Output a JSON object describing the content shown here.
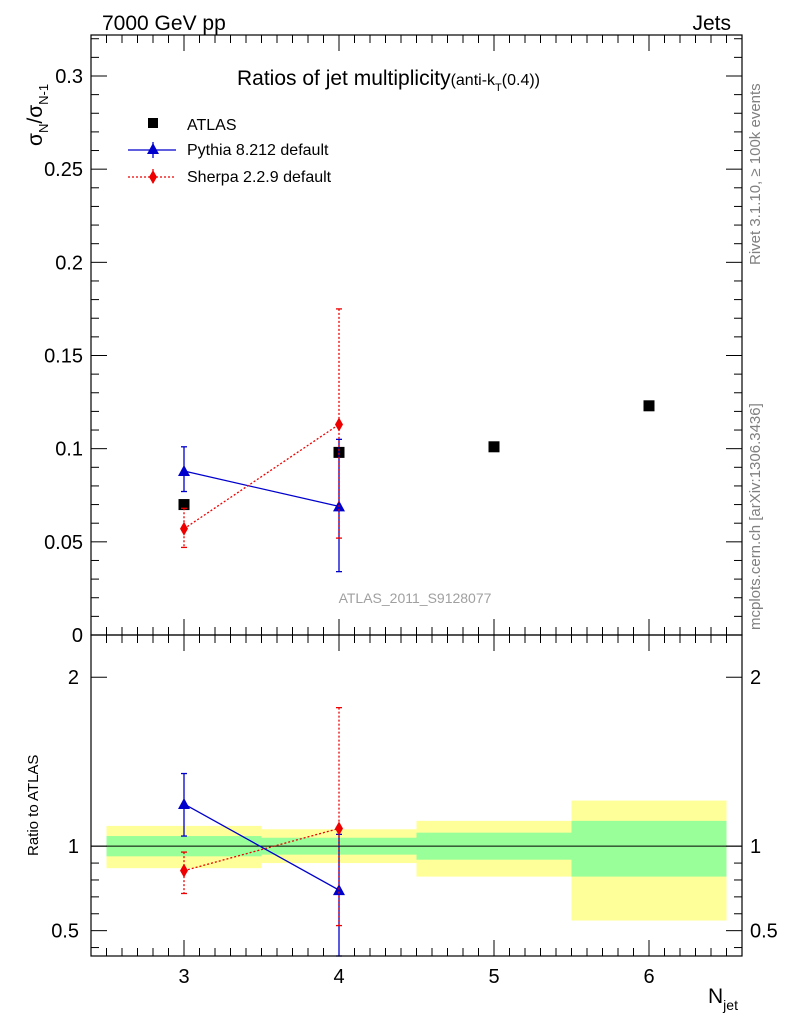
{
  "header": {
    "left": "7000 GeV pp",
    "right": "Jets"
  },
  "side_texts": {
    "rivet": "Rivet 3.1.10, ≥ 100k events",
    "mcplots": "mcplots.cern.ch [arXiv:1306.3436]"
  },
  "chart_data": [
    {
      "panel": "main",
      "type": "scatter",
      "title": "Ratios of jet multiplicity",
      "title_suffix": {
        "pre": "(anti-k",
        "sub": "T",
        "post": "(0.4))"
      },
      "ylabel": {
        "a": "σ",
        "a_sub": "N",
        "slash": "/σ",
        "b_sub": "N-1"
      },
      "watermark": "ATLAS_2011_S9128077",
      "xlim": [
        2.4,
        6.6
      ],
      "ylim": [
        0,
        0.322
      ],
      "yticks": [
        {
          "v": 0,
          "label": "0"
        },
        {
          "v": 0.05,
          "label": "0.05"
        },
        {
          "v": 0.1,
          "label": "0.1"
        },
        {
          "v": 0.15,
          "label": "0.15"
        },
        {
          "v": 0.2,
          "label": "0.2"
        },
        {
          "v": 0.25,
          "label": "0.25"
        },
        {
          "v": 0.3,
          "label": "0.3"
        }
      ],
      "series": [
        {
          "name": "ATLAS",
          "marker": "square",
          "color": "#000000",
          "x": [
            3,
            4,
            5,
            6
          ],
          "y": [
            0.07,
            0.098,
            0.101,
            0.123
          ]
        },
        {
          "name": "Pythia 8.212 default",
          "marker": "triangle",
          "color": "#0000cc",
          "line": "solid",
          "x": [
            3,
            4
          ],
          "y": [
            0.088,
            0.069
          ],
          "err_up": [
            0.101,
            0.105
          ],
          "err_down": [
            0.077,
            0.034
          ]
        },
        {
          "name": "Sherpa 2.2.9 default",
          "marker": "diamond",
          "color": "#ee0000",
          "line": "dotted",
          "x": [
            3,
            4
          ],
          "y": [
            0.057,
            0.113
          ],
          "err_up": [
            0.068,
            0.175
          ],
          "err_down": [
            0.047,
            0.052
          ]
        }
      ]
    },
    {
      "panel": "ratio",
      "type": "line",
      "ylabel": "Ratio to ATLAS",
      "xlabel": {
        "main": "N",
        "sub": "jet"
      },
      "xlim": [
        2.4,
        6.6
      ],
      "ylim": [
        0.35,
        2.25
      ],
      "xticks": [
        {
          "v": 3,
          "label": "3"
        },
        {
          "v": 4,
          "label": "4"
        },
        {
          "v": 5,
          "label": "5"
        },
        {
          "v": 6,
          "label": "6"
        }
      ],
      "yticks": [
        {
          "v": 0.5,
          "label": "0.5"
        },
        {
          "v": 1,
          "label": "1"
        },
        {
          "v": 2,
          "label": "2"
        }
      ],
      "bands": [
        {
          "x0": 2.5,
          "x1": 3.5,
          "yellow": [
            0.87,
            1.12
          ],
          "green": [
            0.94,
            1.06
          ]
        },
        {
          "x0": 3.5,
          "x1": 4.5,
          "yellow": [
            0.9,
            1.1
          ],
          "green": [
            0.95,
            1.05
          ]
        },
        {
          "x0": 4.5,
          "x1": 5.5,
          "yellow": [
            0.82,
            1.15
          ],
          "green": [
            0.92,
            1.08
          ]
        },
        {
          "x0": 5.5,
          "x1": 6.5,
          "yellow": [
            0.56,
            1.27
          ],
          "green": [
            0.82,
            1.15
          ]
        }
      ],
      "series": [
        {
          "name": "Pythia 8.212 default",
          "marker": "triangle",
          "color": "#0000cc",
          "line": "solid",
          "x": [
            3,
            4
          ],
          "y": [
            1.25,
            0.74
          ],
          "err_up": [
            1.43,
            1.07
          ],
          "err_down": [
            1.06,
            0.35
          ]
        },
        {
          "name": "Sherpa 2.2.9 default",
          "marker": "diamond",
          "color": "#ee0000",
          "line": "dotted",
          "x": [
            3,
            4
          ],
          "y": [
            0.855,
            1.105
          ],
          "err_up": [
            0.965,
            1.82
          ],
          "err_down": [
            0.72,
            0.53
          ]
        }
      ]
    }
  ]
}
